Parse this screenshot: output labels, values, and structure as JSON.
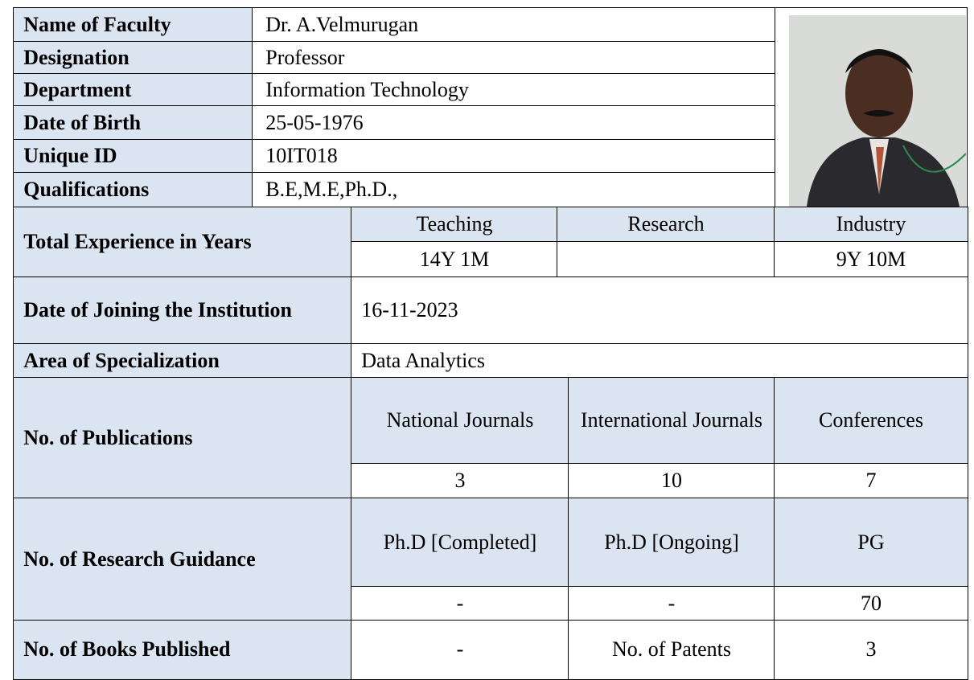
{
  "info": [
    {
      "label": "Name of Faculty",
      "value": "Dr. A.Velmurugan"
    },
    {
      "label": "Designation",
      "value": "Professor"
    },
    {
      "label": "Department",
      "value": "Information Technology"
    },
    {
      "label": "Date of Birth",
      "value": "25-05-1976"
    },
    {
      "label": "Unique ID",
      "value": "10IT018"
    },
    {
      "label": "Qualifications",
      "value": "B.E,M.E,Ph.D.,"
    }
  ],
  "experience": {
    "label": "Total Experience in Years",
    "headers": [
      "Teaching",
      "Research",
      "Industry"
    ],
    "values": [
      "14Y  1M",
      "",
      "9Y 10M"
    ]
  },
  "joining": {
    "label": "Date of Joining the Institution",
    "value": "16-11-2023"
  },
  "specialization": {
    "label": "Area of Specialization",
    "value": "Data Analytics"
  },
  "publications": {
    "label": "No. of  Publications",
    "headers": [
      "National Journals",
      "International Journals",
      "Conferences"
    ],
    "values": [
      3,
      10,
      7
    ]
  },
  "guidance": {
    "label": "No. of Research Guidance",
    "headers": [
      "Ph.D [Completed]",
      "Ph.D [Ongoing]",
      "PG"
    ],
    "values": [
      "-",
      "-",
      70
    ]
  },
  "books": {
    "label": "No. of Books Published",
    "value": "-",
    "patents_label": "No. of Patents",
    "patents_value": 3
  }
}
